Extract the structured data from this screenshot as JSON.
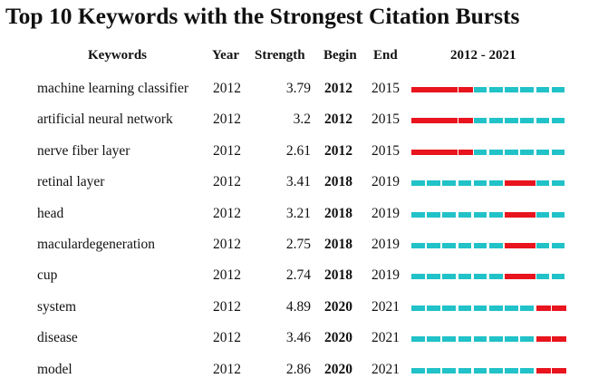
{
  "chart_data": {
    "type": "table",
    "title": "Top 10 Keywords with the Strongest Citation Bursts",
    "columns": [
      "Keywords",
      "Year",
      "Strength",
      "Begin",
      "End",
      "2012 - 2021"
    ],
    "timeline": {
      "start": 2012,
      "end": 2021
    },
    "colors": {
      "burst": "#e8141e",
      "baseline": "#21c2c8"
    },
    "rows": [
      {
        "keyword": "machine learning classifier",
        "year": "2012",
        "strength": "3.79",
        "begin": "2012",
        "end": "2015"
      },
      {
        "keyword": "artificial neural network",
        "year": "2012",
        "strength": "3.2",
        "begin": "2012",
        "end": "2015"
      },
      {
        "keyword": "nerve fiber layer",
        "year": "2012",
        "strength": "2.61",
        "begin": "2012",
        "end": "2015"
      },
      {
        "keyword": "retinal layer",
        "year": "2012",
        "strength": "3.41",
        "begin": "2018",
        "end": "2019"
      },
      {
        "keyword": "head",
        "year": "2012",
        "strength": "3.21",
        "begin": "2018",
        "end": "2019"
      },
      {
        "keyword": "maculardegeneration",
        "year": "2012",
        "strength": "2.75",
        "begin": "2018",
        "end": "2019"
      },
      {
        "keyword": "cup",
        "year": "2012",
        "strength": "2.74",
        "begin": "2018",
        "end": "2019"
      },
      {
        "keyword": "system",
        "year": "2012",
        "strength": "4.89",
        "begin": "2020",
        "end": "2021"
      },
      {
        "keyword": "disease",
        "year": "2012",
        "strength": "3.46",
        "begin": "2020",
        "end": "2021"
      },
      {
        "keyword": "model",
        "year": "2012",
        "strength": "2.86",
        "begin": "2020",
        "end": "2021"
      }
    ]
  }
}
